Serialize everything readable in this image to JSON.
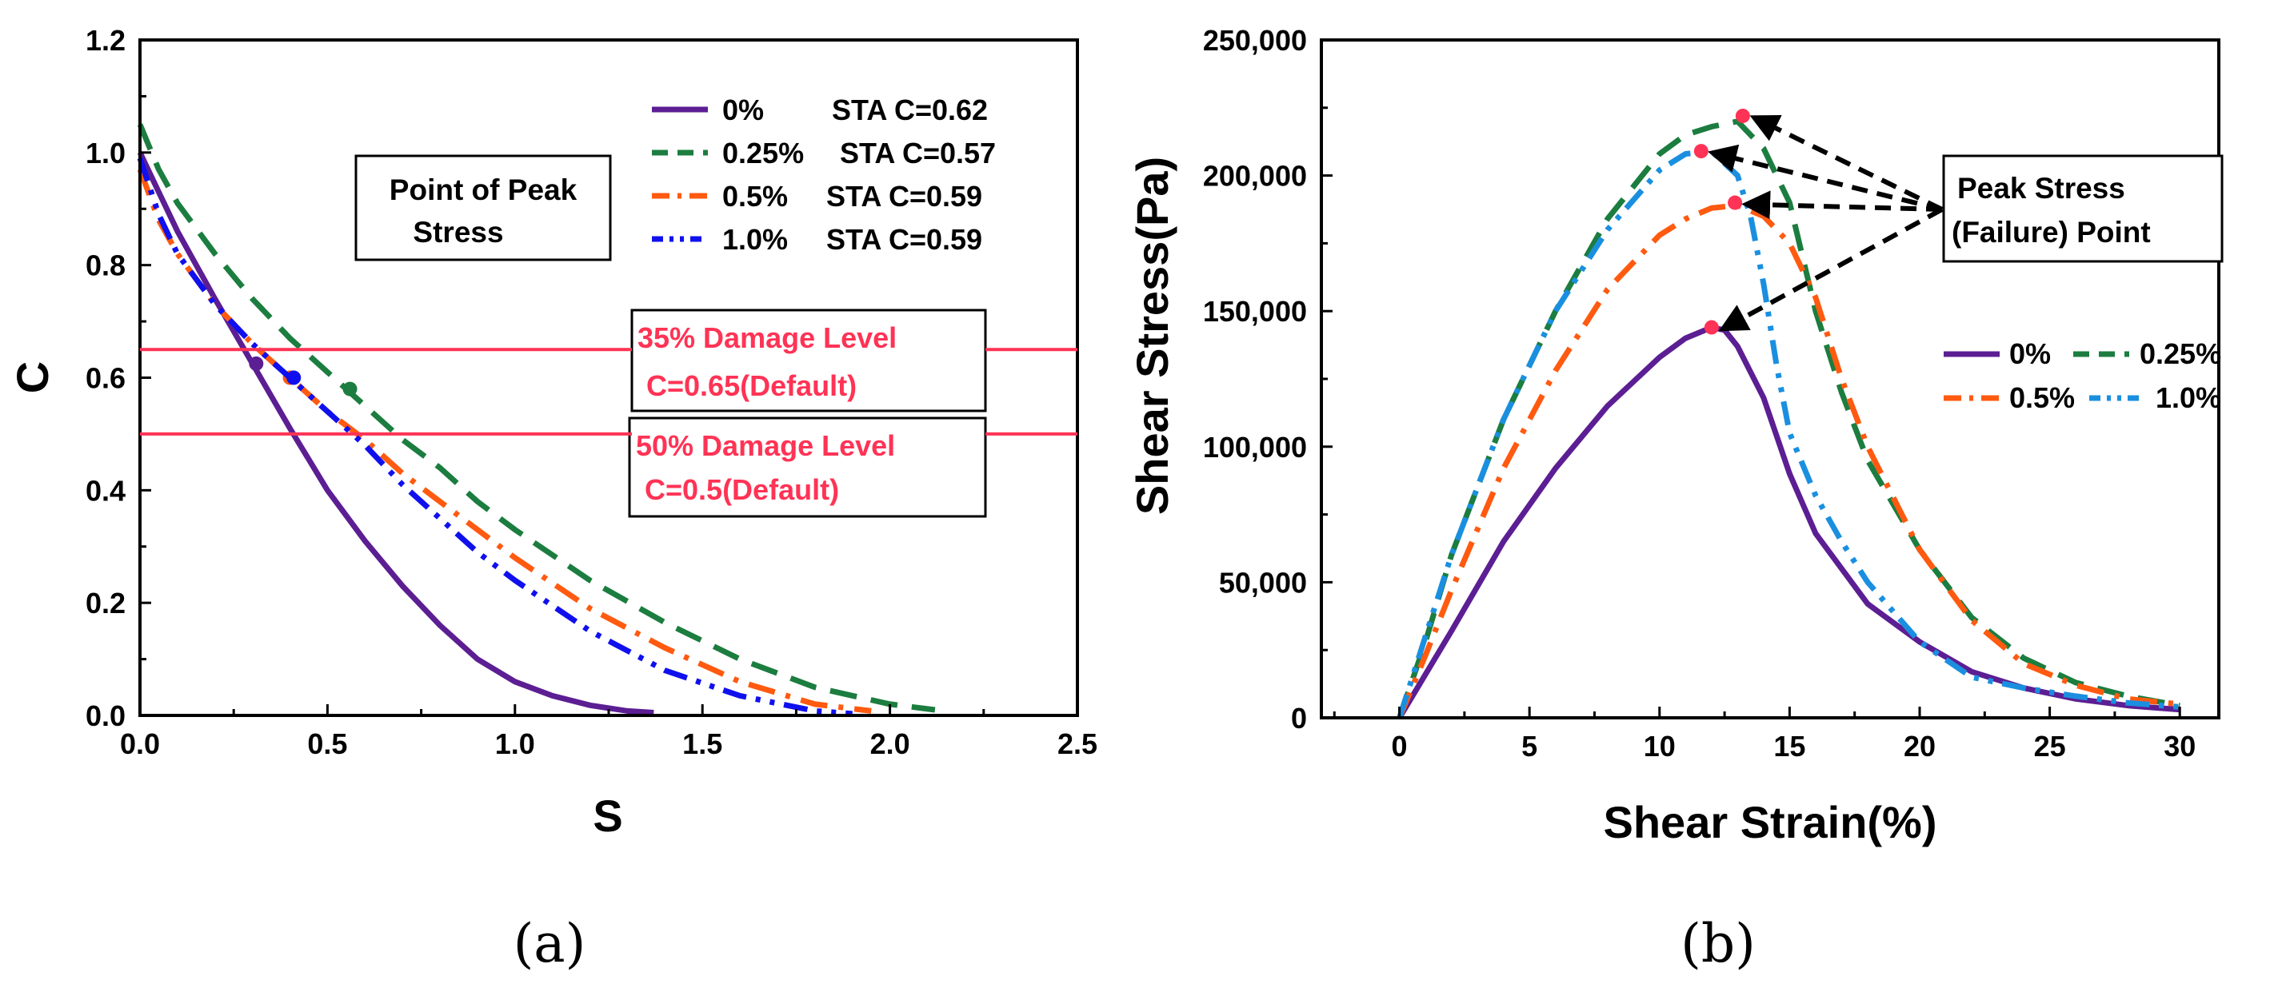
{
  "colors": {
    "c0": "#5c1e93",
    "c025": "#1b7d3f",
    "c05": "#ff5a10",
    "c10": "#1010ee",
    "c10b": "#1a8fe0",
    "red": "#ff3355",
    "peak": "#ff3355"
  },
  "chart_data": [
    {
      "type": "line",
      "panel_label": "(a)",
      "xlabel": "S",
      "ylabel": "C",
      "xlim": [
        0,
        2.5
      ],
      "ylim": [
        0,
        1.2
      ],
      "xticks": [
        "0.0",
        "0.5",
        "1.0",
        "1.5",
        "2.0",
        "2.5"
      ],
      "yticks": [
        "0.0",
        "0.2",
        "0.4",
        "0.6",
        "0.8",
        "1.0",
        "1.2"
      ],
      "series": [
        {
          "name": "0%",
          "sta": "STA C=0.62",
          "style": "solid",
          "color": "#5c1e93",
          "x": [
            0,
            0.05,
            0.1,
            0.2,
            0.3,
            0.4,
            0.5,
            0.6,
            0.7,
            0.8,
            0.9,
            1.0,
            1.1,
            1.2,
            1.3,
            1.37
          ],
          "y": [
            1.0,
            0.93,
            0.86,
            0.74,
            0.625,
            0.51,
            0.4,
            0.31,
            0.23,
            0.16,
            0.1,
            0.06,
            0.035,
            0.018,
            0.008,
            0.005
          ],
          "peak": [
            0.31,
            0.625
          ]
        },
        {
          "name": "0.25%",
          "sta": "STA C=0.57",
          "style": "dash",
          "color": "#1b7d3f",
          "x": [
            0,
            0.05,
            0.1,
            0.2,
            0.3,
            0.4,
            0.5,
            0.6,
            0.7,
            0.8,
            0.9,
            1.0,
            1.2,
            1.4,
            1.6,
            1.8,
            2.0,
            2.12
          ],
          "y": [
            1.05,
            0.97,
            0.91,
            0.82,
            0.74,
            0.67,
            0.61,
            0.55,
            0.49,
            0.44,
            0.38,
            0.33,
            0.24,
            0.165,
            0.1,
            0.05,
            0.02,
            0.01
          ],
          "peak": [
            0.56,
            0.58
          ]
        },
        {
          "name": "0.5%",
          "sta": "STA C=0.59",
          "style": "dashdot",
          "color": "#ff5a10",
          "x": [
            0,
            0.05,
            0.1,
            0.2,
            0.3,
            0.4,
            0.5,
            0.6,
            0.7,
            0.8,
            0.9,
            1.0,
            1.2,
            1.4,
            1.6,
            1.8,
            1.95
          ],
          "y": [
            0.97,
            0.88,
            0.82,
            0.73,
            0.66,
            0.6,
            0.54,
            0.49,
            0.43,
            0.38,
            0.33,
            0.28,
            0.19,
            0.12,
            0.06,
            0.02,
            0.008
          ],
          "peak": [
            0.4,
            0.6
          ]
        },
        {
          "name": "1.0%",
          "sta": "STA C=0.59",
          "style": "dashdotdot",
          "color": "#1010ee",
          "x": [
            0,
            0.05,
            0.1,
            0.2,
            0.3,
            0.4,
            0.5,
            0.6,
            0.7,
            0.8,
            0.9,
            1.0,
            1.2,
            1.4,
            1.6,
            1.8,
            1.9
          ],
          "y": [
            0.99,
            0.89,
            0.82,
            0.73,
            0.66,
            0.6,
            0.54,
            0.48,
            0.41,
            0.35,
            0.29,
            0.24,
            0.15,
            0.08,
            0.035,
            0.008,
            0.003
          ],
          "peak": [
            0.41,
            0.6
          ]
        }
      ],
      "hlines": [
        {
          "y": 0.65,
          "label1": "35% Damage Level",
          "label2": "C=0.65(Default)"
        },
        {
          "y": 0.5,
          "label1": "50% Damage Level",
          "label2": "C=0.5(Default)"
        }
      ],
      "annotation": {
        "line1": "Point of Peak",
        "line2": "Stress"
      },
      "legend_position": "top-right"
    },
    {
      "type": "line",
      "panel_label": "(b)",
      "xlabel": "Shear Strain(%)",
      "ylabel": "Shear Stress(Pa)",
      "xlim": [
        -3,
        31.5
      ],
      "ylim": [
        0,
        250000
      ],
      "xticks": [
        "0",
        "5",
        "10",
        "15",
        "20",
        "25",
        "30"
      ],
      "yticks": [
        "0",
        "50,000",
        "100,000",
        "150,000",
        "200,000",
        "250,000"
      ],
      "series": [
        {
          "name": "0%",
          "style": "solid",
          "color": "#5c1e93",
          "x": [
            0,
            2,
            4,
            6,
            8,
            10,
            11,
            12,
            12.5,
            13,
            14,
            15,
            16,
            18,
            20,
            22,
            24,
            26,
            28,
            30
          ],
          "y": [
            0,
            32000,
            65000,
            92000,
            115000,
            133000,
            140000,
            144000,
            143000,
            137000,
            118000,
            90000,
            68000,
            42000,
            28000,
            17000,
            11000,
            7000,
            4500,
            3000
          ],
          "peak": [
            12,
            144000
          ]
        },
        {
          "name": "0.25%",
          "style": "dash",
          "color": "#1b7d3f",
          "x": [
            0,
            1,
            2,
            4,
            6,
            8,
            10,
            11,
            12,
            13,
            14,
            15,
            16,
            17,
            18,
            20,
            22,
            24,
            26,
            28,
            30
          ],
          "y": [
            0,
            28000,
            60000,
            110000,
            150000,
            184000,
            208000,
            215000,
            218000,
            220000,
            210000,
            190000,
            150000,
            120000,
            95000,
            62000,
            37000,
            22000,
            13000,
            8000,
            4500
          ],
          "peak": [
            13.2,
            222000
          ]
        },
        {
          "name": "0.5%",
          "style": "dashdot",
          "color": "#ff5a10",
          "x": [
            0,
            1,
            2,
            4,
            6,
            8,
            10,
            11,
            12,
            13,
            14,
            15,
            16,
            17,
            18,
            20,
            22,
            24,
            26,
            28,
            30
          ],
          "y": [
            0,
            23000,
            47000,
            92000,
            128000,
            158000,
            178000,
            184000,
            188000,
            189000,
            185000,
            175000,
            155000,
            125000,
            100000,
            62000,
            36000,
            20000,
            12000,
            7000,
            5000
          ],
          "peak": [
            12.9,
            190000
          ]
        },
        {
          "name": "1.0%",
          "style": "dashdotdot",
          "color": "#1a8fe0",
          "x": [
            0,
            1,
            2,
            4,
            6,
            8,
            10,
            11,
            12,
            13,
            13.5,
            14,
            14.5,
            15,
            16,
            17,
            18,
            20,
            22,
            24,
            26,
            28,
            30
          ],
          "y": [
            0,
            30000,
            60000,
            110000,
            150000,
            180000,
            202000,
            208000,
            209000,
            200000,
            185000,
            160000,
            130000,
            105000,
            82000,
            65000,
            50000,
            28000,
            15000,
            11000,
            8000,
            5500,
            4000
          ],
          "peak": [
            11.6,
            209000
          ]
        }
      ],
      "annotation": {
        "line1": "Peak Stress",
        "line2": "(Failure) Point"
      },
      "legend_position": "center-right"
    }
  ]
}
